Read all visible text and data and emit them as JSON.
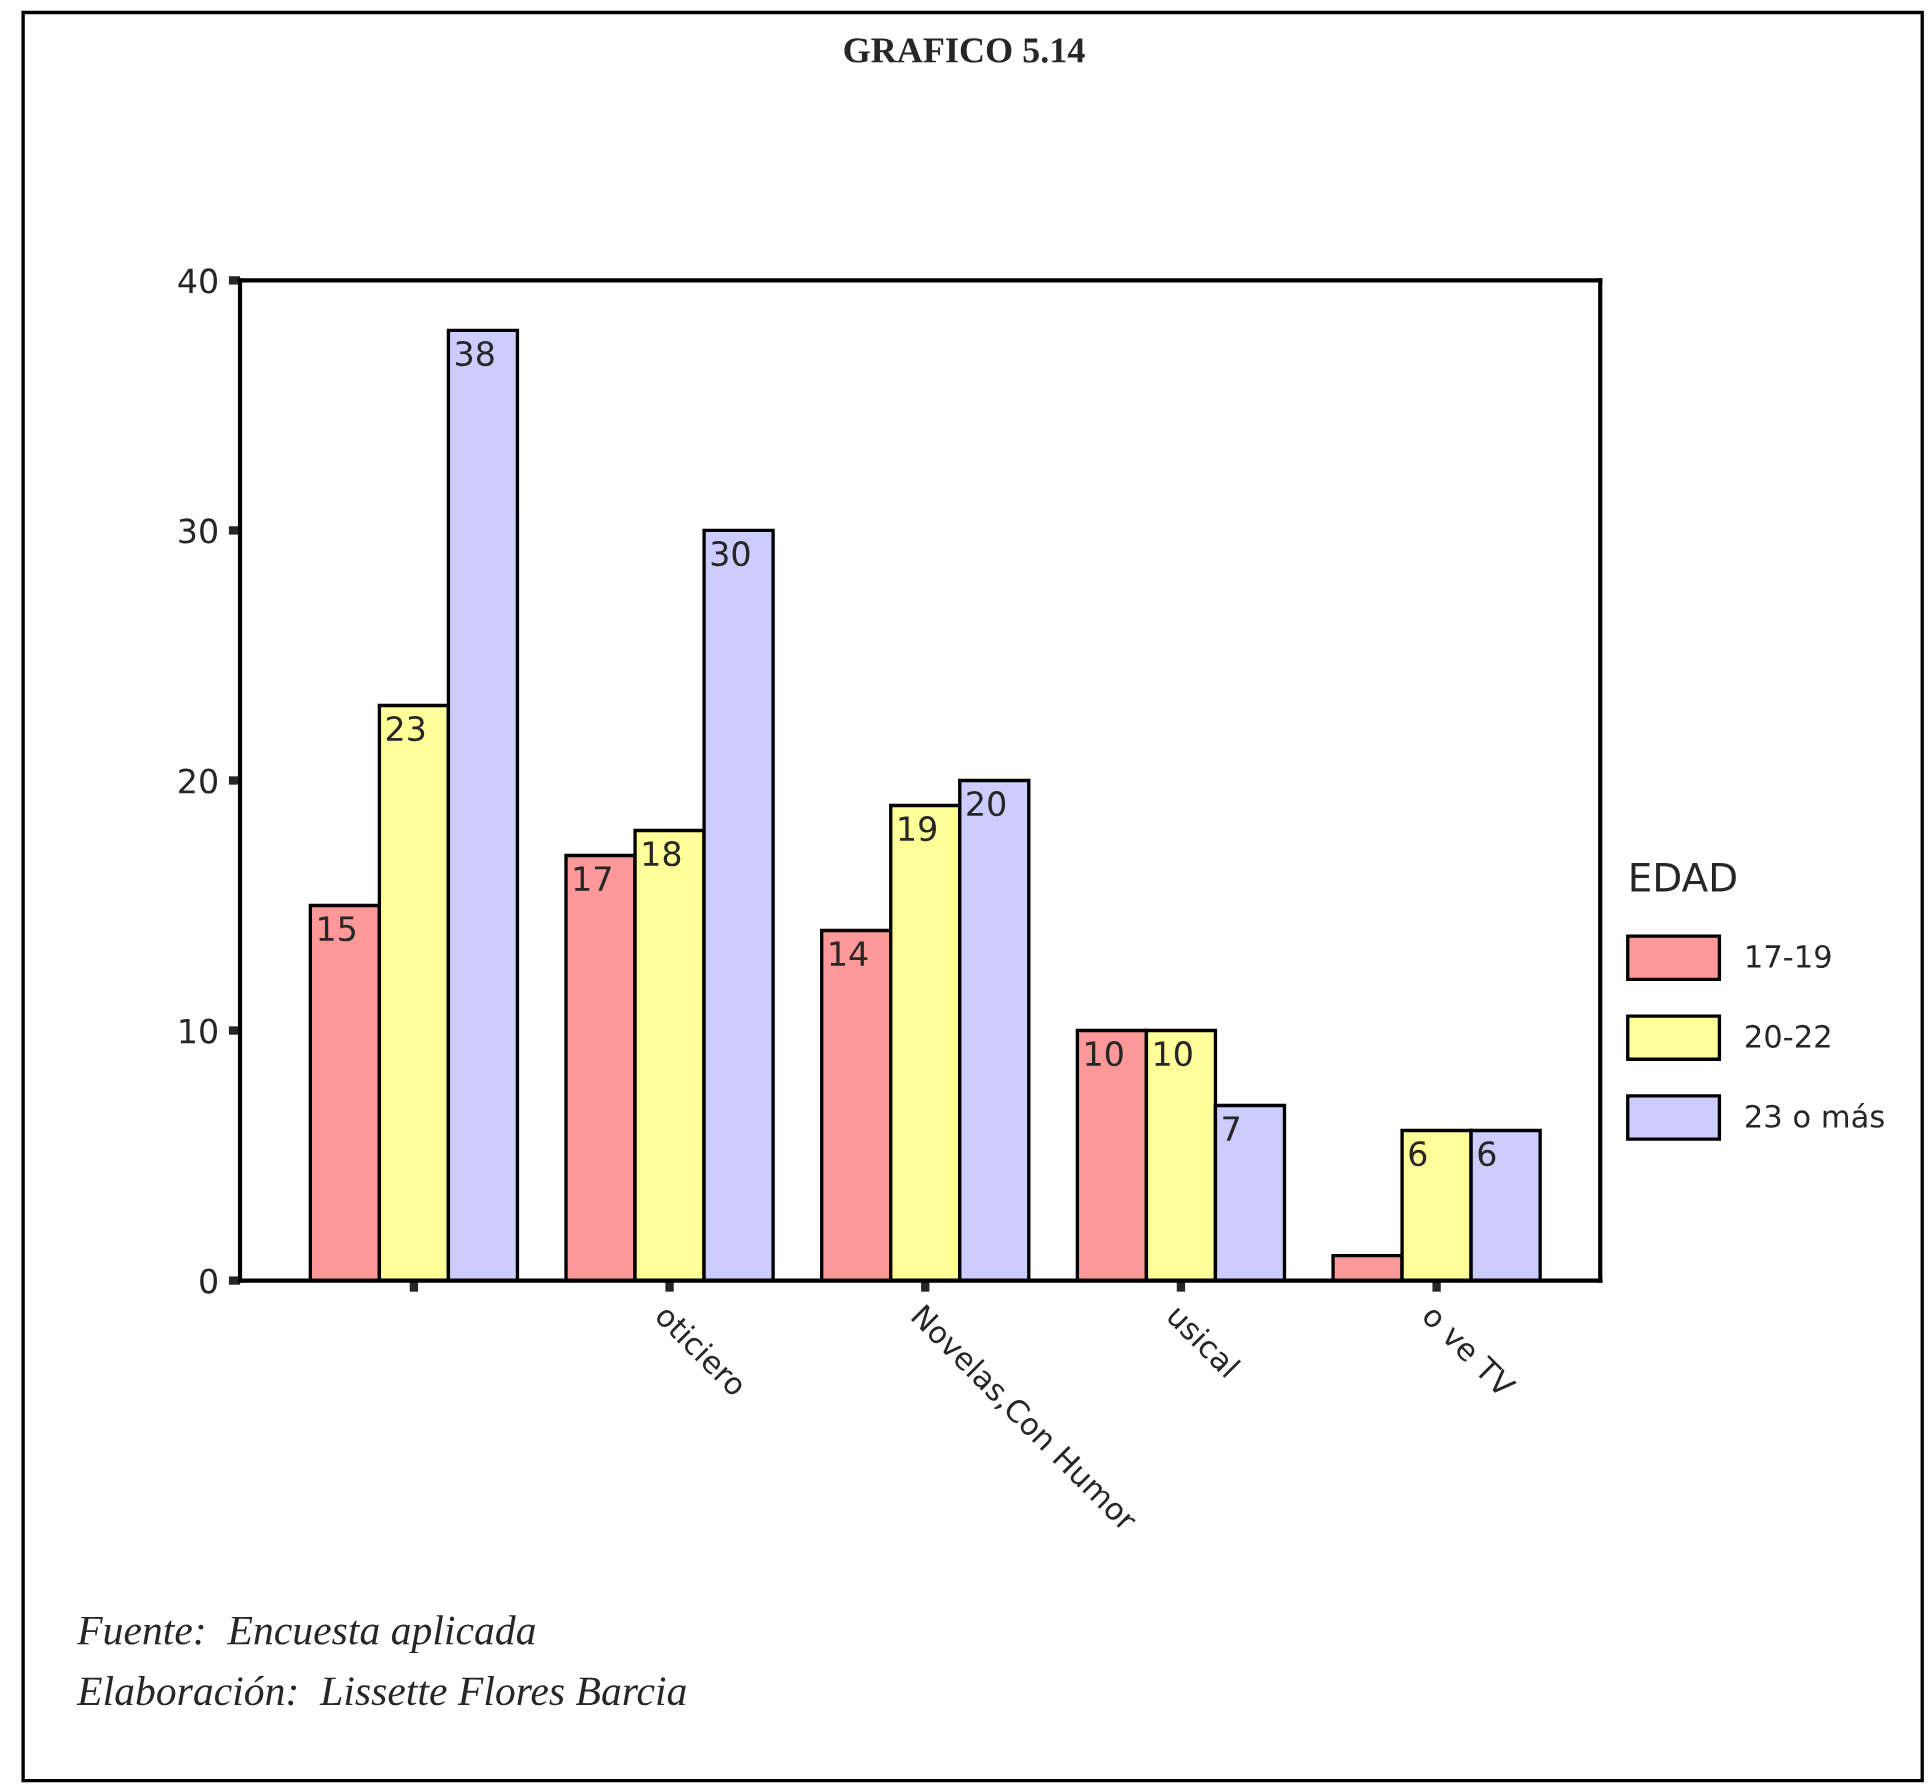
{
  "chart_data": {
    "type": "bar",
    "title": "GRAFICO 5.14",
    "categories": [
      null,
      "oticiero",
      "Novelas,Con Humor",
      "usical",
      "o ve TV"
    ],
    "series": [
      {
        "name": "17-19",
        "color": "#ff9999",
        "values": [
          15,
          17,
          14,
          10,
          1
        ],
        "value_labels": [
          "15",
          "17",
          "14",
          "10",
          null
        ]
      },
      {
        "name": "20-22",
        "color": "#ffff99",
        "values": [
          23,
          18,
          19,
          10,
          6
        ],
        "value_labels": [
          "23",
          "18",
          "19",
          "10",
          "6"
        ]
      },
      {
        "name": "23 o más",
        "color": "#ccccff",
        "values": [
          38,
          30,
          20,
          7,
          6
        ],
        "value_labels": [
          "38",
          "30",
          "20",
          "7",
          "6"
        ]
      }
    ],
    "legend_title": "EDAD",
    "legend": "right",
    "ylim": [
      0,
      40
    ],
    "yticks": [
      0,
      10,
      20,
      30,
      40
    ],
    "grid": false,
    "annotations": [
      "Fuente:  Encuesta aplicada",
      "Elaboración:  Lissette Flores Barcia"
    ]
  }
}
